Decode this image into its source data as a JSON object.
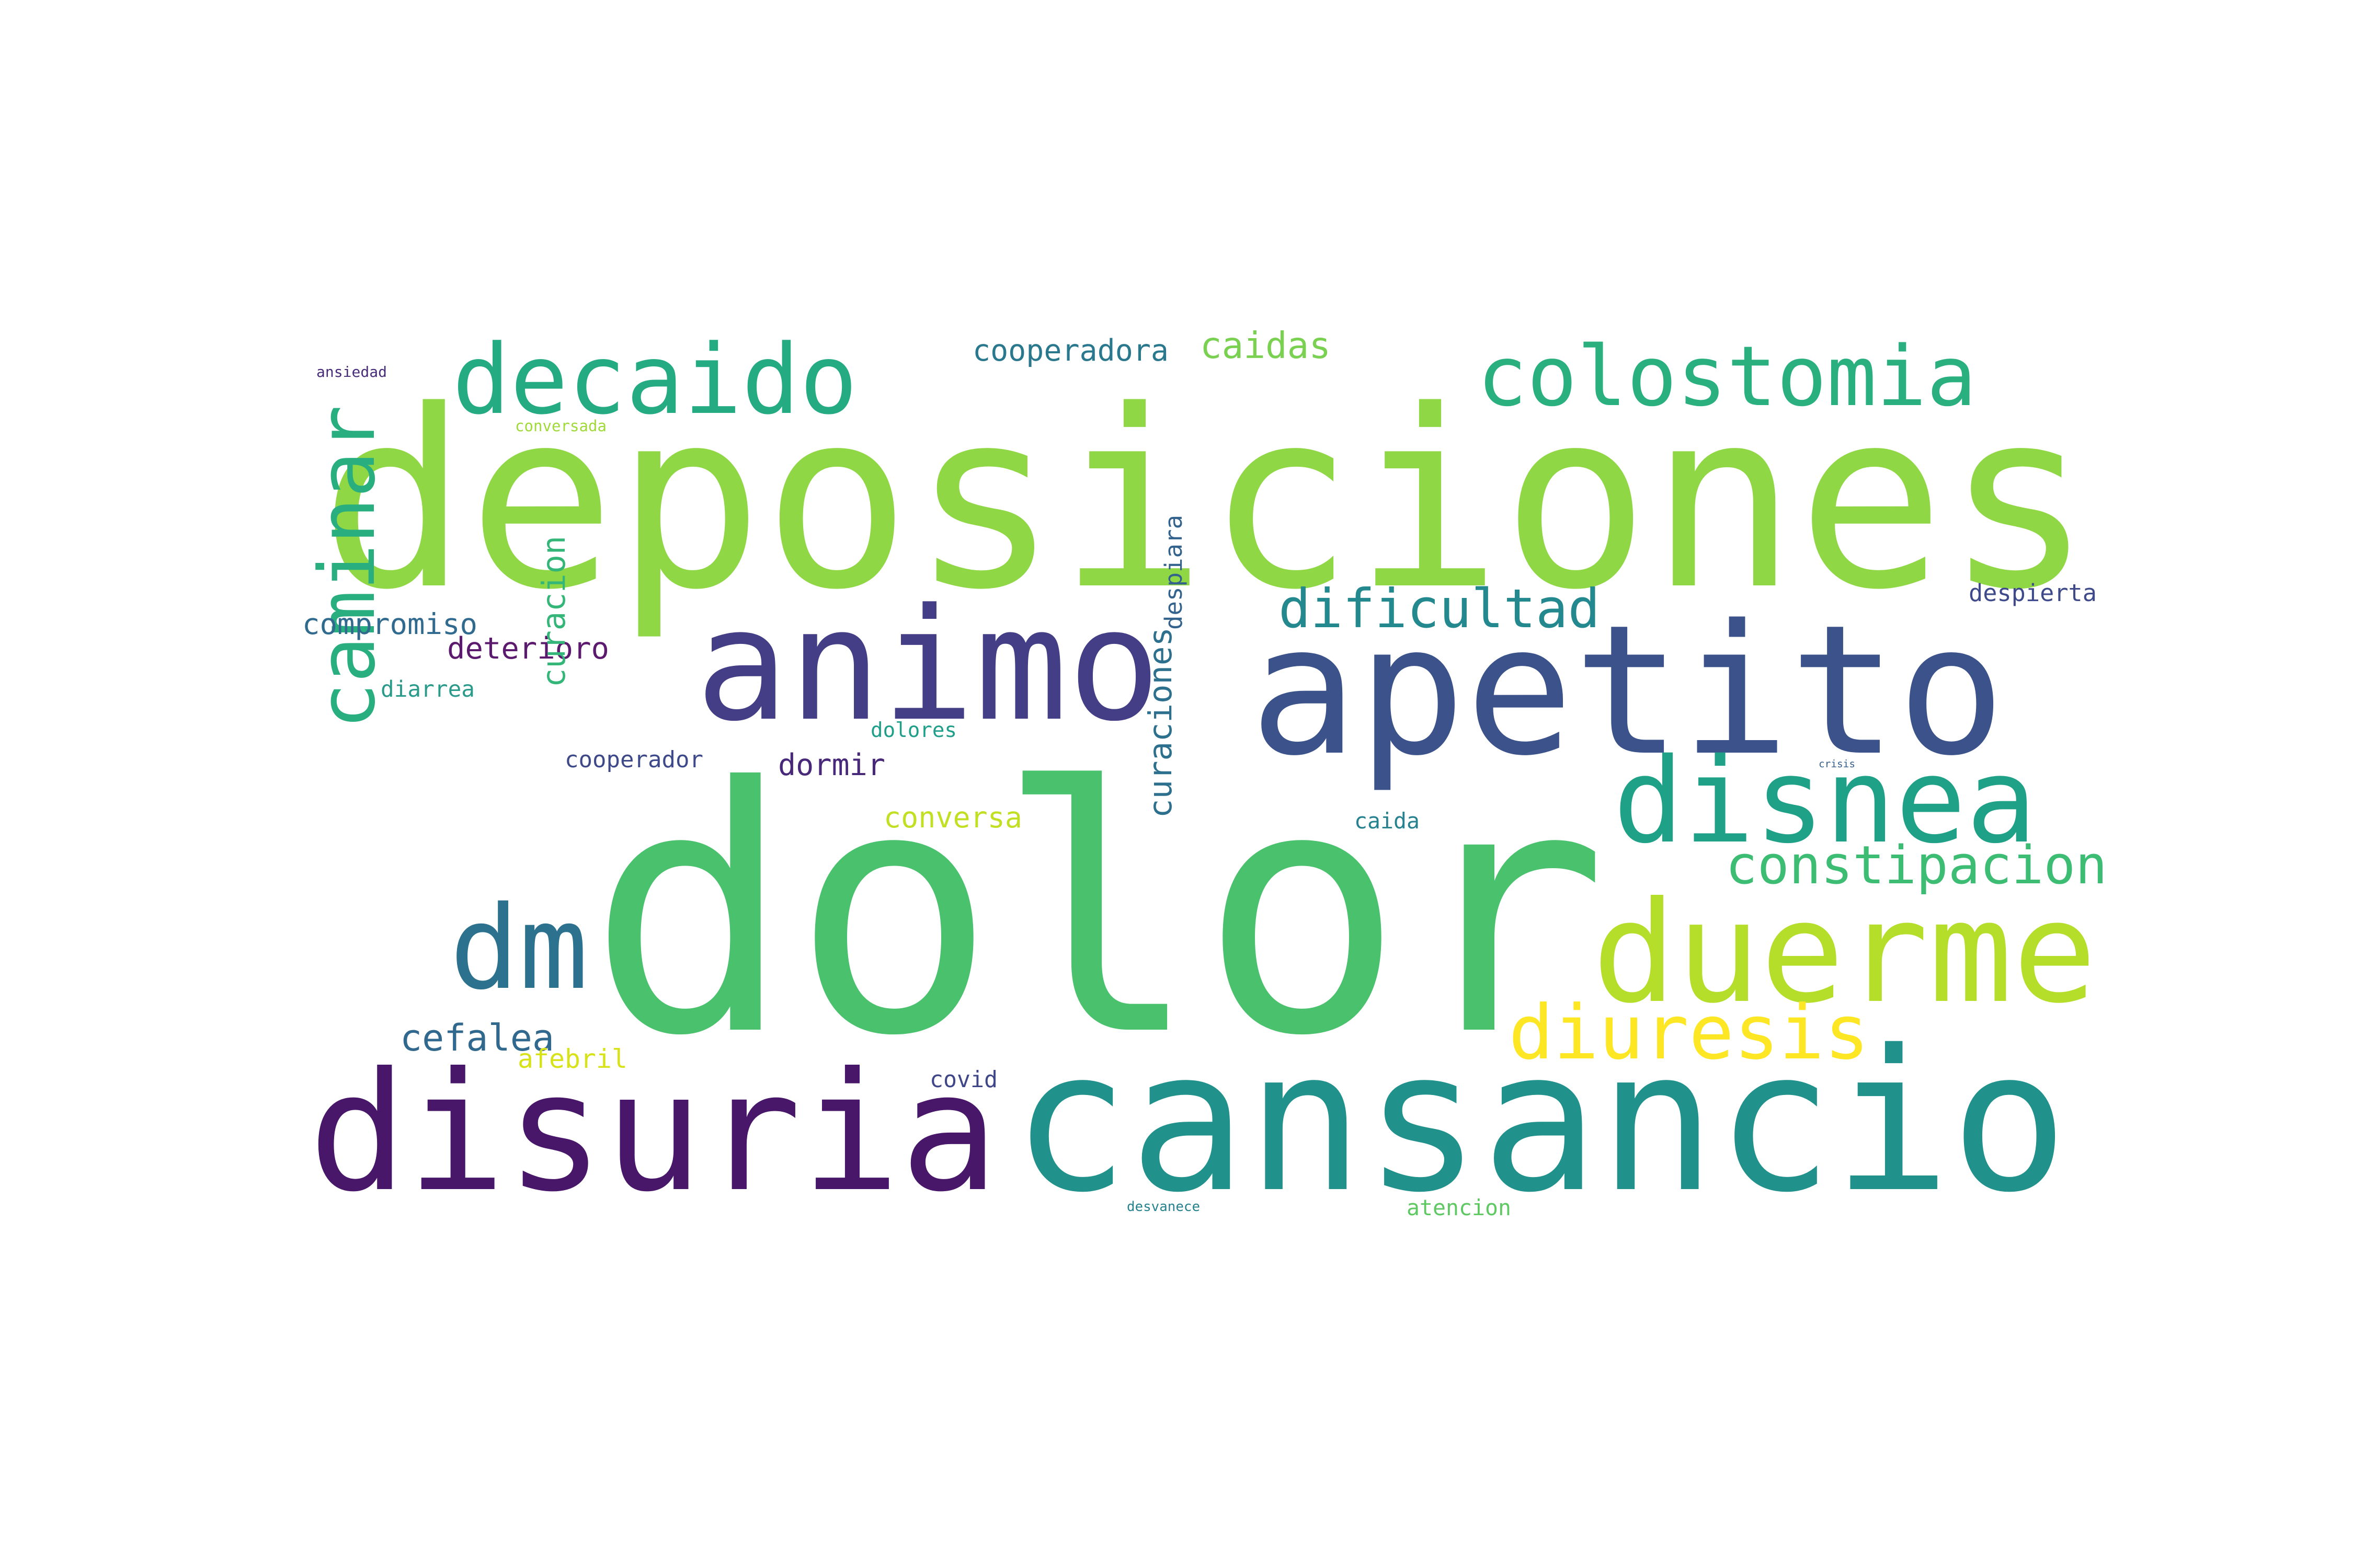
{
  "words": [
    {
      "text": "deposiciones",
      "color": "#8fd744"
    },
    {
      "text": "dolor",
      "color": "#4ac16d"
    },
    {
      "text": "apetito",
      "color": "#3b528b"
    },
    {
      "text": "animo",
      "color": "#433e85"
    },
    {
      "text": "disuria",
      "color": "#481769"
    },
    {
      "text": "cansancio",
      "color": "#21918c"
    },
    {
      "text": "decaido",
      "color": "#25ab82"
    },
    {
      "text": "colostomia",
      "color": "#2ab07f"
    },
    {
      "text": "disnea",
      "color": "#1fa187"
    },
    {
      "text": "duerme",
      "color": "#b5de2b"
    },
    {
      "text": "dm",
      "color": "#2c728e"
    },
    {
      "text": "caminar",
      "color": "#29af7f"
    },
    {
      "text": "dificultad",
      "color": "#23898e"
    },
    {
      "text": "constipacion",
      "color": "#3dbc74"
    },
    {
      "text": "diuresis",
      "color": "#fde725"
    },
    {
      "text": "cefalea",
      "color": "#31688e"
    },
    {
      "text": "caidas",
      "color": "#7ad151"
    },
    {
      "text": "cooperadora",
      "color": "#2a788e"
    },
    {
      "text": "compromiso",
      "color": "#306a8e"
    },
    {
      "text": "deterioro",
      "color": "#5b1a6e"
    },
    {
      "text": "afebril",
      "color": "#d8e219"
    },
    {
      "text": "curacion",
      "color": "#34b679"
    },
    {
      "text": "conversa",
      "color": "#c2df23"
    },
    {
      "text": "dormir",
      "color": "#482878"
    },
    {
      "text": "cooperador",
      "color": "#3e4989"
    },
    {
      "text": "dolores",
      "color": "#1f9e89"
    },
    {
      "text": "despierta",
      "color": "#3e4a89"
    },
    {
      "text": "curaciones",
      "color": "#2d708e"
    },
    {
      "text": "caida",
      "color": "#26828e"
    },
    {
      "text": "covid",
      "color": "#3f4788"
    },
    {
      "text": "atencion",
      "color": "#5ec962"
    },
    {
      "text": "diarrea",
      "color": "#2a9a8a"
    },
    {
      "text": "despiara",
      "color": "#33638d"
    },
    {
      "text": "ansiedad",
      "color": "#472c7a"
    },
    {
      "text": "conversada",
      "color": "#a0da39"
    },
    {
      "text": "desvanece",
      "color": "#26828e"
    },
    {
      "text": "crisis",
      "color": "#35608d"
    }
  ]
}
